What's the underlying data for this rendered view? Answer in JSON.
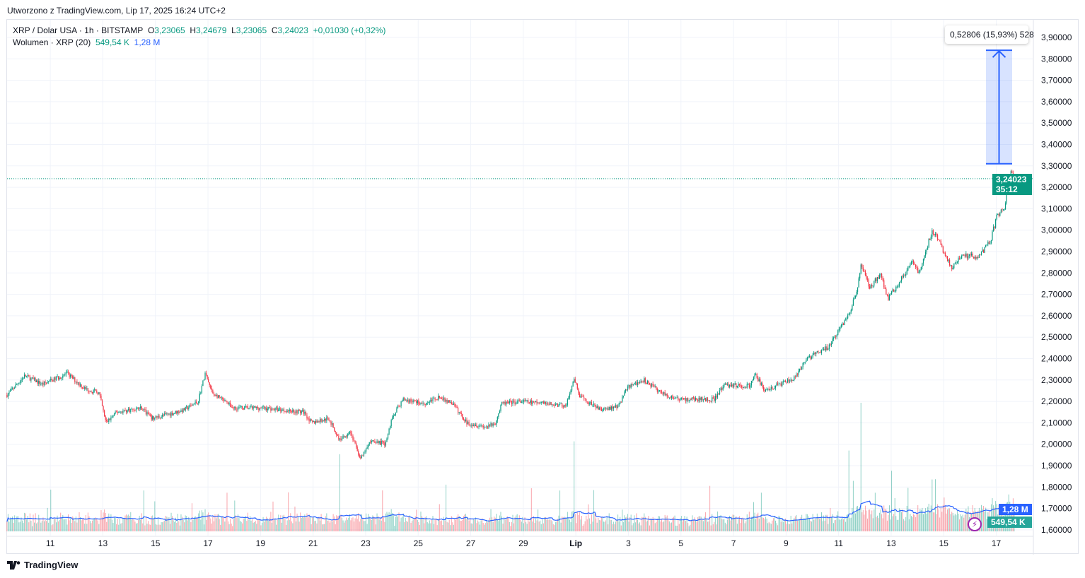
{
  "header": {
    "created": "Utworzono z TradingView.com, Lip 17, 2025 16:24 UTC+2"
  },
  "legend": {
    "symbol": "XRP / Dolar USA · 1h · BITSTAMP",
    "o_label": "O",
    "o": "3,23065",
    "h_label": "H",
    "h": "3,24679",
    "l_label": "L",
    "l": "3,23065",
    "c_label": "C",
    "c": "3,24023",
    "change": "+0,01030 (+0,32%)",
    "volume_title": "Wolumen · XRP (20)",
    "volume": "549,54 K",
    "volume_ma": "1,28 M"
  },
  "measure": {
    "label": "0,52806 (15,93%) 528"
  },
  "price_label": {
    "price": "3,24023",
    "countdown": "35:12"
  },
  "volume_labels": {
    "ma": "1,28 M",
    "vol": "549,54 K"
  },
  "footer": {
    "brand": "TradingView"
  },
  "colors": {
    "up": "#089981",
    "down": "#f23645",
    "ma": "#2962ff",
    "measure": "#2962ff"
  },
  "chart_data": {
    "type": "candlestick",
    "title": "XRP / Dolar USA · 1h · BITSTAMP",
    "ylim": [
      1.6,
      3.9
    ],
    "y_ticks": [
      "3,90000",
      "3,80000",
      "3,70000",
      "3,60000",
      "3,50000",
      "3,40000",
      "3,30000",
      "3,20000",
      "3,10000",
      "3,00000",
      "2,90000",
      "2,80000",
      "2,70000",
      "2,60000",
      "2,50000",
      "2,40000",
      "2,30000",
      "2,20000",
      "2,10000",
      "2,00000",
      "1,90000",
      "1,80000",
      "1,70000",
      "1,60000"
    ],
    "x_ticks": [
      {
        "day": 1,
        "label": "11"
      },
      {
        "day": 3,
        "label": "13"
      },
      {
        "day": 5,
        "label": "15"
      },
      {
        "day": 7,
        "label": "17"
      },
      {
        "day": 9,
        "label": "19"
      },
      {
        "day": 11,
        "label": "21"
      },
      {
        "day": 13,
        "label": "23"
      },
      {
        "day": 15,
        "label": "25"
      },
      {
        "day": 17,
        "label": "27"
      },
      {
        "day": 19,
        "label": "29"
      },
      {
        "day": 21,
        "label": "Lip",
        "bold": true
      },
      {
        "day": 23,
        "label": "3"
      },
      {
        "day": 25,
        "label": "5"
      },
      {
        "day": 27,
        "label": "7"
      },
      {
        "day": 29,
        "label": "9"
      },
      {
        "day": 31,
        "label": "11"
      },
      {
        "day": 33,
        "label": "13"
      },
      {
        "day": 35,
        "label": "15"
      },
      {
        "day": 37,
        "label": "17"
      }
    ],
    "x_unit": "days since Jun 10",
    "price_path": [
      [
        -0.65,
        2.23
      ],
      [
        0.03,
        2.32
      ],
      [
        0.7,
        2.28
      ],
      [
        1.64,
        2.33
      ],
      [
        2.31,
        2.26
      ],
      [
        2.85,
        2.24
      ],
      [
        3.12,
        2.1
      ],
      [
        3.53,
        2.15
      ],
      [
        4.47,
        2.17
      ],
      [
        4.87,
        2.12
      ],
      [
        6.08,
        2.16
      ],
      [
        6.62,
        2.2
      ],
      [
        6.89,
        2.33
      ],
      [
        7.16,
        2.24
      ],
      [
        7.97,
        2.17
      ],
      [
        9.04,
        2.17
      ],
      [
        10.66,
        2.15
      ],
      [
        10.93,
        2.1
      ],
      [
        11.6,
        2.12
      ],
      [
        12.0,
        2.02
      ],
      [
        12.41,
        2.06
      ],
      [
        12.81,
        1.93
      ],
      [
        13.22,
        2.02
      ],
      [
        13.75,
        2.0
      ],
      [
        14.02,
        2.13
      ],
      [
        14.43,
        2.21
      ],
      [
        15.24,
        2.19
      ],
      [
        15.77,
        2.22
      ],
      [
        16.31,
        2.19
      ],
      [
        16.85,
        2.1
      ],
      [
        17.66,
        2.08
      ],
      [
        17.93,
        2.1
      ],
      [
        18.19,
        2.19
      ],
      [
        19.0,
        2.2
      ],
      [
        20.62,
        2.18
      ],
      [
        20.94,
        2.3
      ],
      [
        21.16,
        2.22
      ],
      [
        21.96,
        2.16
      ],
      [
        22.64,
        2.18
      ],
      [
        22.91,
        2.26
      ],
      [
        23.58,
        2.3
      ],
      [
        24.39,
        2.23
      ],
      [
        24.93,
        2.21
      ],
      [
        26.27,
        2.21
      ],
      [
        26.68,
        2.28
      ],
      [
        27.62,
        2.27
      ],
      [
        27.83,
        2.33
      ],
      [
        28.16,
        2.25
      ],
      [
        28.96,
        2.29
      ],
      [
        29.37,
        2.31
      ],
      [
        29.77,
        2.4
      ],
      [
        30.58,
        2.45
      ],
      [
        30.85,
        2.5
      ],
      [
        31.39,
        2.61
      ],
      [
        31.66,
        2.7
      ],
      [
        31.87,
        2.84
      ],
      [
        32.19,
        2.73
      ],
      [
        32.6,
        2.8
      ],
      [
        32.87,
        2.68
      ],
      [
        33.27,
        2.75
      ],
      [
        33.81,
        2.85
      ],
      [
        34.08,
        2.8
      ],
      [
        34.56,
        3.0
      ],
      [
        34.89,
        2.93
      ],
      [
        35.29,
        2.82
      ],
      [
        35.69,
        2.88
      ],
      [
        36.37,
        2.88
      ],
      [
        36.77,
        2.95
      ],
      [
        37.04,
        3.07
      ],
      [
        37.31,
        3.1
      ],
      [
        37.52,
        3.27
      ],
      [
        37.71,
        3.24
      ]
    ],
    "last_price": 3.24023,
    "measure_range": [
      3.31,
      3.84
    ],
    "volume_spikes": [
      [
        12.0,
        0.84
      ],
      [
        20.94,
        0.98
      ],
      [
        31.39,
        0.88
      ],
      [
        31.87,
        1.4
      ],
      [
        33.0,
        0.66
      ],
      [
        37.8,
        0.62
      ]
    ]
  }
}
